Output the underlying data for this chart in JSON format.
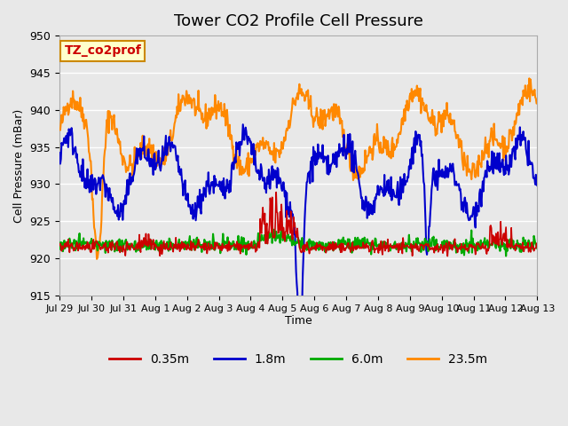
{
  "title": "Tower CO2 Profile Cell Pressure",
  "xlabel": "Time",
  "ylabel": "Cell Pressure (mBar)",
  "ylim": [
    915,
    950
  ],
  "plot_bg_color": "#e8e8e8",
  "grid_color": "white",
  "tick_labels": [
    "Jul 29",
    "Jul 30",
    "Jul 31",
    "Aug 1",
    "Aug 2",
    "Aug 3",
    "Aug 4",
    "Aug 5",
    "Aug 6",
    "Aug 7",
    "Aug 8",
    "Aug 9",
    "Aug 10",
    "Aug 11",
    "Aug 12",
    "Aug 13"
  ],
  "series": {
    "0.35m": {
      "color": "#cc0000",
      "lw": 1.2
    },
    "1.8m": {
      "color": "#0000cc",
      "lw": 1.5
    },
    "6.0m": {
      "color": "#00aa00",
      "lw": 1.5
    },
    "23.5m": {
      "color": "#ff8800",
      "lw": 1.5
    }
  },
  "label_box": {
    "text": "TZ_co2prof",
    "bg": "#ffffcc",
    "edge": "#cc8800",
    "text_color": "#cc0000",
    "fontsize": 10,
    "fontweight": "bold"
  },
  "legend_fontsize": 10,
  "title_fontsize": 13
}
